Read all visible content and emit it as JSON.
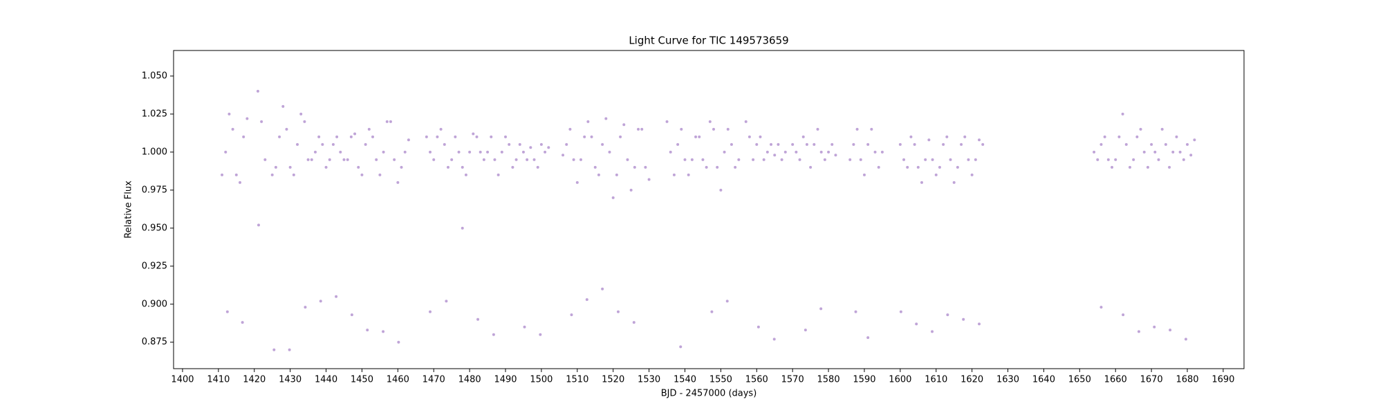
{
  "chart_data": {
    "type": "scatter",
    "title": "Light Curve for TIC 149573659",
    "x_label": "BJD - 2457000 (days)",
    "y_label": "Relative Flux",
    "series": [
      {
        "name": "Relative Flux",
        "color": "#9467bd",
        "x": [
          1411,
          1412,
          1413,
          1414,
          1415,
          1416,
          1417,
          1418,
          1421,
          1422,
          1423,
          1425,
          1426,
          1427,
          1428,
          1429,
          1430,
          1431,
          1432,
          1433,
          1434,
          1435,
          1436,
          1437,
          1438,
          1439,
          1440,
          1441,
          1442,
          1443,
          1444,
          1445,
          1446,
          1447,
          1448,
          1449,
          1450,
          1451,
          1452,
          1453,
          1454,
          1455,
          1456,
          1457,
          1458,
          1459,
          1460,
          1461,
          1462,
          1463,
          1468,
          1469,
          1470,
          1471,
          1472,
          1473,
          1474,
          1475,
          1476,
          1477,
          1478,
          1479,
          1480,
          1481,
          1482,
          1483,
          1484,
          1485,
          1486,
          1487,
          1488,
          1489,
          1490,
          1491,
          1492,
          1493,
          1494,
          1495,
          1496,
          1497,
          1498,
          1499,
          1500,
          1501,
          1502,
          1506,
          1507,
          1508,
          1509,
          1510,
          1511,
          1512,
          1513,
          1514,
          1515,
          1516,
          1517,
          1518,
          1519,
          1520,
          1521,
          1522,
          1523,
          1524,
          1525,
          1526,
          1527,
          1528,
          1529,
          1530,
          1535,
          1536,
          1537,
          1538,
          1539,
          1540,
          1541,
          1542,
          1543,
          1544,
          1545,
          1546,
          1547,
          1548,
          1549,
          1550,
          1551,
          1552,
          1553,
          1554,
          1555,
          1557,
          1558,
          1559,
          1560,
          1561,
          1562,
          1563,
          1564,
          1565,
          1566,
          1567,
          1568,
          1570,
          1571,
          1572,
          1573,
          1574,
          1575,
          1576,
          1577,
          1578,
          1579,
          1580,
          1581,
          1582,
          1586,
          1587,
          1588,
          1589,
          1590,
          1591,
          1592,
          1593,
          1594,
          1595,
          1600,
          1601,
          1602,
          1603,
          1604,
          1605,
          1606,
          1607,
          1608,
          1609,
          1610,
          1611,
          1612,
          1613,
          1614,
          1615,
          1616,
          1617,
          1618,
          1619,
          1620,
          1621,
          1622,
          1623,
          1654,
          1655,
          1656,
          1657,
          1658,
          1659,
          1660,
          1661,
          1662,
          1663,
          1664,
          1665,
          1666,
          1667,
          1668,
          1669,
          1670,
          1671,
          1672,
          1673,
          1674,
          1675,
          1676,
          1677,
          1678,
          1679,
          1680,
          1681,
          1682,
          1412.5,
          1416.7,
          1421.2,
          1425.5,
          1429.8,
          1434.2,
          1438.5,
          1442.8,
          1447.2,
          1451.5,
          1455.9,
          1460.2,
          1469,
          1473.5,
          1478,
          1482.3,
          1486.7,
          1495.3,
          1499.7,
          1508.4,
          1512.7,
          1517,
          1521.4,
          1525.8,
          1538.8,
          1547.5,
          1551.8,
          1560.5,
          1564.9,
          1573.6,
          1577.9,
          1587.6,
          1591,
          1600.2,
          1604.5,
          1608.9,
          1613.2,
          1617.6,
          1622,
          1656,
          1662.1,
          1666.5,
          1670.8,
          1675.2,
          1679.6
        ],
        "values": [
          0.985,
          1.0,
          1.025,
          1.015,
          0.985,
          0.98,
          1.01,
          1.022,
          1.04,
          1.02,
          0.995,
          0.985,
          0.99,
          1.01,
          1.03,
          1.015,
          0.99,
          0.985,
          1.005,
          1.025,
          1.02,
          0.995,
          0.995,
          1.0,
          1.01,
          1.005,
          0.99,
          0.995,
          1.005,
          1.01,
          1.0,
          0.995,
          0.995,
          1.01,
          1.012,
          0.99,
          0.985,
          1.005,
          1.015,
          1.01,
          0.995,
          0.985,
          1.0,
          1.02,
          1.02,
          0.995,
          0.98,
          0.99,
          1.0,
          1.008,
          1.01,
          1.0,
          0.995,
          1.01,
          1.015,
          1.005,
          0.99,
          0.995,
          1.01,
          1.0,
          0.99,
          0.985,
          1.0,
          1.012,
          1.01,
          1.0,
          0.995,
          1.0,
          1.01,
          0.995,
          0.985,
          1.0,
          1.01,
          1.005,
          0.99,
          0.995,
          1.005,
          1.0,
          0.995,
          1.003,
          0.995,
          0.99,
          1.005,
          1.0,
          1.003,
          0.998,
          1.005,
          1.015,
          0.995,
          0.98,
          0.995,
          1.01,
          1.02,
          1.01,
          0.99,
          0.985,
          1.005,
          1.022,
          1.0,
          0.97,
          0.985,
          1.01,
          1.018,
          0.995,
          0.975,
          0.99,
          1.015,
          1.015,
          0.99,
          0.982,
          1.02,
          1.0,
          0.985,
          1.005,
          1.015,
          0.995,
          0.985,
          0.995,
          1.01,
          1.01,
          0.995,
          0.99,
          1.02,
          1.015,
          0.99,
          0.975,
          1.0,
          1.015,
          1.005,
          0.99,
          0.995,
          1.02,
          1.01,
          0.995,
          1.005,
          1.01,
          0.995,
          1.0,
          1.005,
          0.998,
          1.005,
          0.995,
          1.0,
          1.005,
          1.0,
          0.995,
          1.01,
          1.005,
          0.99,
          1.005,
          1.015,
          1.0,
          0.995,
          1.0,
          1.005,
          0.998,
          0.995,
          1.005,
          1.015,
          0.995,
          0.985,
          1.005,
          1.015,
          1.0,
          0.99,
          1.0,
          1.005,
          0.995,
          0.99,
          1.01,
          1.005,
          0.99,
          0.98,
          0.995,
          1.008,
          0.995,
          0.985,
          0.99,
          1.005,
          1.01,
          0.995,
          0.98,
          0.99,
          1.005,
          1.01,
          0.995,
          0.985,
          0.995,
          1.008,
          1.005,
          1.0,
          0.995,
          1.005,
          1.01,
          0.995,
          0.99,
          0.995,
          1.01,
          1.025,
          1.005,
          0.99,
          0.995,
          1.01,
          1.015,
          1.0,
          0.99,
          1.005,
          1.0,
          0.995,
          1.015,
          1.005,
          0.99,
          1.0,
          1.01,
          1.0,
          0.995,
          1.005,
          0.998,
          1.008,
          0.895,
          0.888,
          0.952,
          0.87,
          0.87,
          0.898,
          0.902,
          0.905,
          0.893,
          0.883,
          0.882,
          0.875,
          0.895,
          0.902,
          0.95,
          0.89,
          0.88,
          0.885,
          0.88,
          0.893,
          0.903,
          0.91,
          0.895,
          0.888,
          0.872,
          0.895,
          0.902,
          0.885,
          0.877,
          0.883,
          0.897,
          0.895,
          0.878,
          0.895,
          0.887,
          0.882,
          0.893,
          0.89,
          0.887,
          0.898,
          0.893,
          0.882,
          0.885,
          0.883,
          0.877
        ]
      }
    ],
    "xlim": [
      1397.5,
      1695.8
    ],
    "ylim": [
      0.8576,
      1.0668
    ],
    "xticks": [
      1400,
      1410,
      1420,
      1430,
      1440,
      1450,
      1460,
      1470,
      1480,
      1490,
      1500,
      1510,
      1520,
      1530,
      1540,
      1550,
      1560,
      1570,
      1580,
      1590,
      1600,
      1610,
      1620,
      1630,
      1640,
      1650,
      1660,
      1670,
      1680,
      1690
    ],
    "yticks": [
      0.875,
      {
        "value": 0.9,
        "label": "0.900"
      },
      0.925,
      {
        "value": 0.95,
        "label": "0.950"
      },
      0.975,
      {
        "value": 1.0,
        "label": "1.000"
      },
      1.025,
      {
        "value": 1.05,
        "label": "1.050"
      }
    ],
    "grid": false
  }
}
